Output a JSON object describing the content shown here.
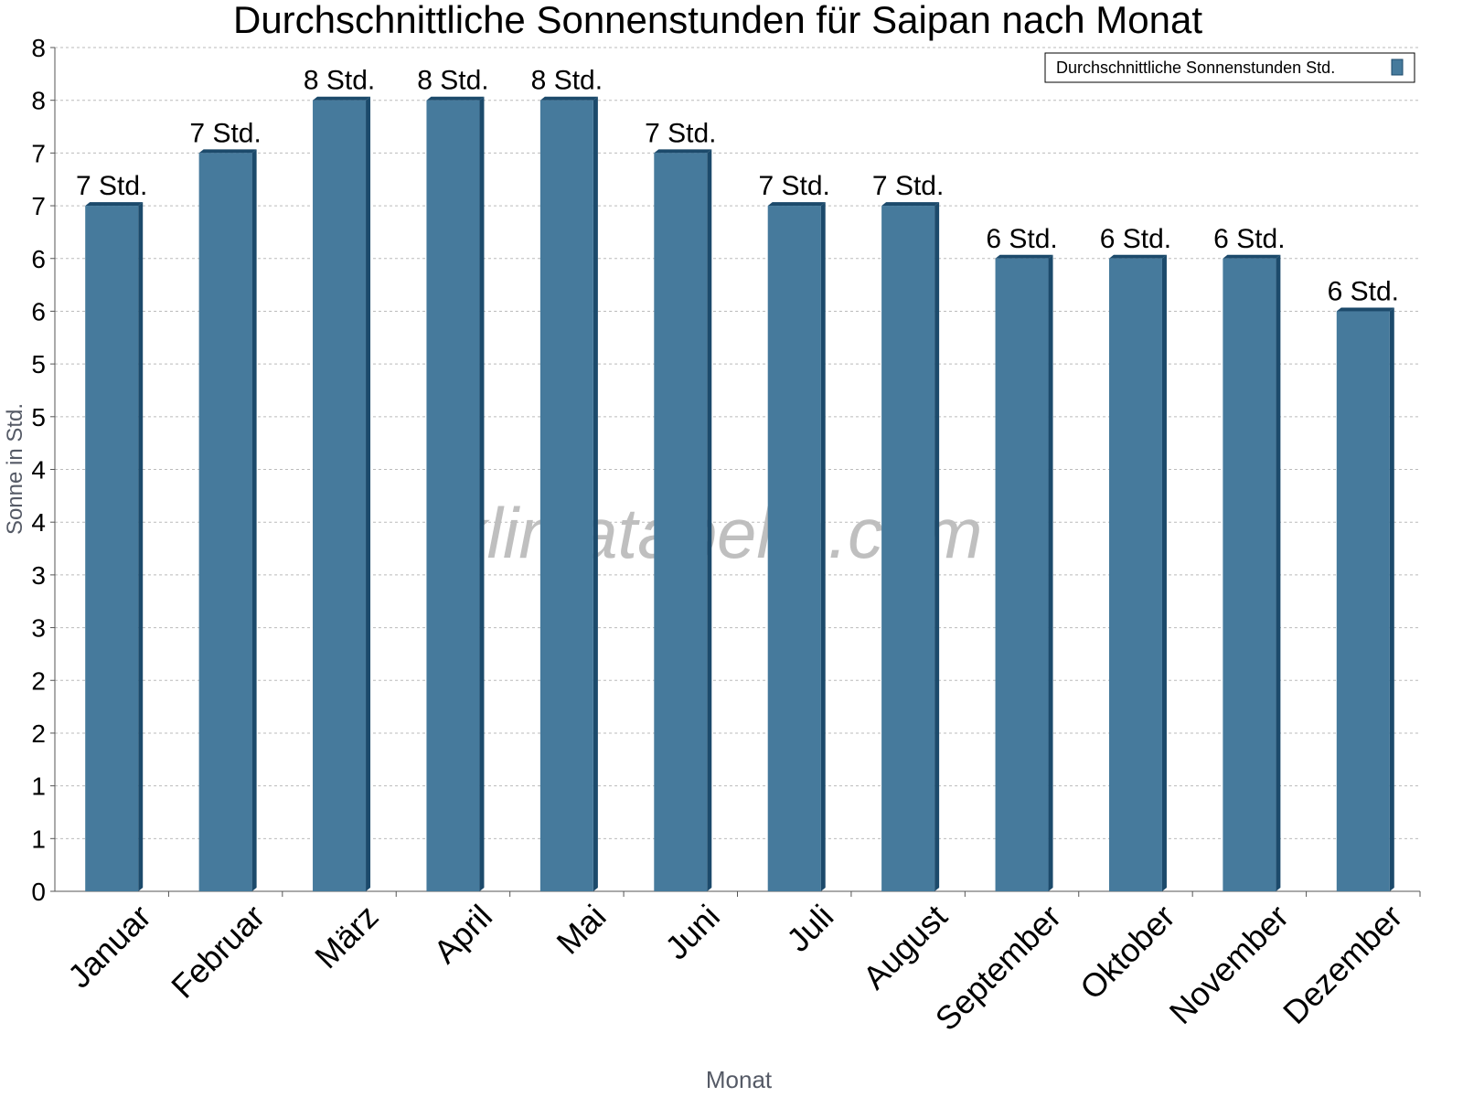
{
  "chart_data": {
    "type": "bar",
    "title": "Durchschnittliche Sonnenstunden für Saipan nach Monat",
    "x_label": "Monat",
    "y_label": "Sonne in Std.",
    "watermark": "klimatabelle.com",
    "legend_position": "upper right",
    "grid": true,
    "categories": [
      "Januar",
      "Februar",
      "März",
      "April",
      "Mai",
      "Juni",
      "Juli",
      "August",
      "September",
      "Oktober",
      "November",
      "Dezember"
    ],
    "series": [
      {
        "name": "Durchschnittliche Sonnenstunden Std.",
        "color": "#467a9c",
        "values": [
          6.5,
          7,
          7.5,
          7.5,
          7.5,
          7,
          6.5,
          6.5,
          6,
          6,
          6,
          5.5
        ],
        "value_labels": [
          "7 Std.",
          "7 Std.",
          "8 Std.",
          "8 Std.",
          "8 Std.",
          "7 Std.",
          "7 Std.",
          "7 Std.",
          "6 Std.",
          "6 Std.",
          "6 Std.",
          "6 Std."
        ]
      }
    ],
    "ylim": [
      0,
      8
    ],
    "yticks": [
      0,
      {
        "value": 0.5,
        "label": "1"
      },
      1,
      {
        "value": 1.5,
        "label": "2"
      },
      2,
      {
        "value": 2.5,
        "label": "3"
      },
      3,
      {
        "value": 3.5,
        "label": "4"
      },
      4,
      {
        "value": 4.5,
        "label": "5"
      },
      5,
      {
        "value": 5.5,
        "label": "6"
      },
      6,
      {
        "value": 6.5,
        "label": "7"
      },
      7,
      {
        "value": 7.5,
        "label": "8"
      },
      8
    ]
  }
}
